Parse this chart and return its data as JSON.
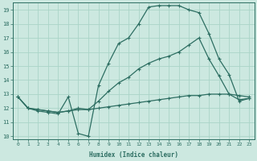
{
  "background_color": "#cce8e0",
  "grid_color": "#aad4c8",
  "line_color": "#2d6e62",
  "xlabel": "Humidex (Indice chaleur)",
  "xlim": [
    -0.5,
    23.5
  ],
  "ylim": [
    9.8,
    19.5
  ],
  "xticks": [
    0,
    1,
    2,
    3,
    4,
    5,
    6,
    7,
    8,
    9,
    10,
    11,
    12,
    13,
    14,
    15,
    16,
    17,
    18,
    19,
    20,
    21,
    22,
    23
  ],
  "yticks": [
    10,
    11,
    12,
    13,
    14,
    15,
    16,
    17,
    18,
    19
  ],
  "curve1_x": [
    0,
    1,
    2,
    3,
    4,
    5,
    6,
    7,
    8,
    9,
    10,
    11,
    12,
    13,
    14,
    15,
    16,
    17,
    18,
    19,
    20,
    21,
    22,
    23
  ],
  "curve1_y": [
    12.8,
    12.0,
    11.8,
    11.7,
    11.6,
    12.8,
    10.2,
    10.0,
    13.6,
    15.2,
    16.6,
    17.0,
    18.0,
    19.2,
    19.3,
    19.3,
    19.3,
    19.0,
    18.8,
    17.3,
    15.5,
    14.4,
    12.5,
    12.7
  ],
  "curve2_x": [
    0,
    1,
    2,
    3,
    4,
    5,
    6,
    7,
    8,
    9,
    10,
    11,
    12,
    13,
    14,
    15,
    16,
    17,
    18,
    19,
    20,
    21,
    22,
    23
  ],
  "curve2_y": [
    12.8,
    12.0,
    11.9,
    11.8,
    11.7,
    11.8,
    11.9,
    11.9,
    12.0,
    12.1,
    12.2,
    12.3,
    12.4,
    12.5,
    12.6,
    12.7,
    12.8,
    12.9,
    12.9,
    13.0,
    13.0,
    13.0,
    12.9,
    12.8
  ],
  "curve3_x": [
    0,
    1,
    2,
    3,
    4,
    5,
    6,
    7,
    8,
    9,
    10,
    11,
    12,
    13,
    14,
    15,
    16,
    17,
    18,
    19,
    20,
    21,
    22,
    23
  ],
  "curve3_y": [
    12.8,
    12.0,
    11.9,
    11.8,
    11.7,
    11.8,
    12.0,
    11.9,
    12.5,
    13.2,
    13.8,
    14.2,
    14.8,
    15.2,
    15.5,
    15.7,
    16.0,
    16.5,
    17.0,
    15.5,
    14.3,
    13.0,
    12.6,
    12.7
  ]
}
